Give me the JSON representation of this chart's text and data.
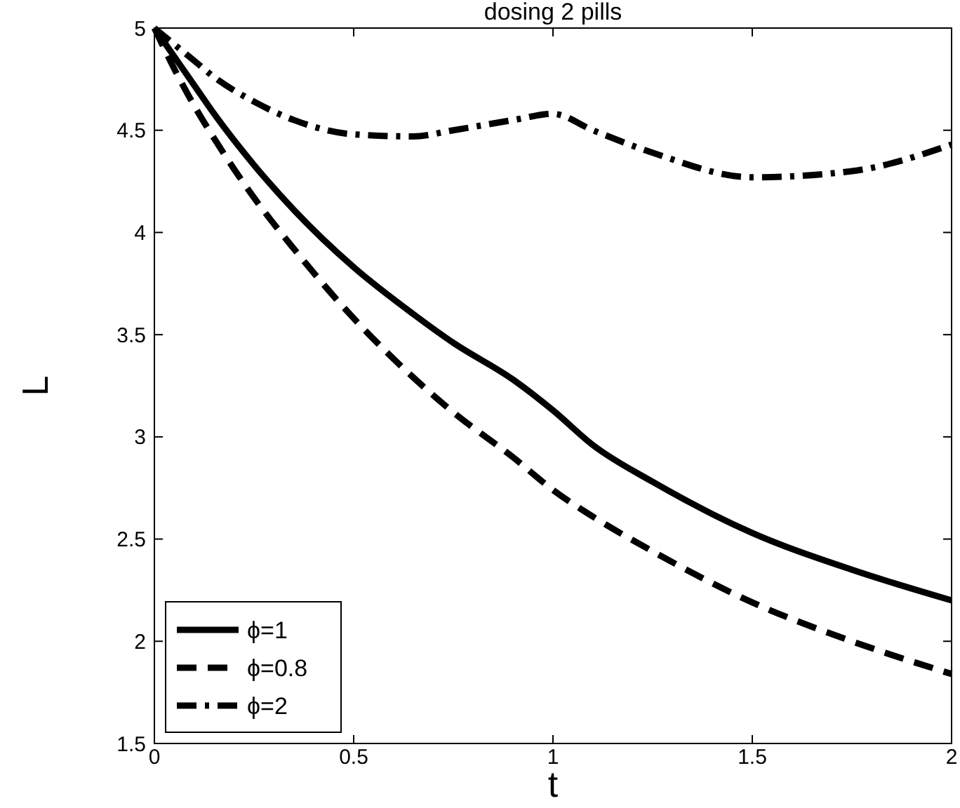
{
  "chart_data": {
    "type": "line",
    "title": "dosing 2 pills",
    "xlabel": "t",
    "ylabel": "L",
    "xlim": [
      0,
      2
    ],
    "ylim": [
      1.5,
      5
    ],
    "xticks": [
      0,
      0.5,
      1,
      1.5,
      2
    ],
    "yticks": [
      1.5,
      2,
      2.5,
      3,
      3.5,
      4,
      4.5,
      5
    ],
    "grid": false,
    "legend": "bottom left",
    "x": [
      0,
      0.05,
      0.1,
      0.15,
      0.25,
      0.35,
      0.5,
      0.65,
      0.75,
      0.9,
      1,
      1.1,
      1.25,
      1.5,
      1.75,
      2
    ],
    "series": [
      {
        "name": "ϕ=1",
        "color": "#000000",
        "line_style": "solid",
        "values": [
          5,
          4.86,
          4.72,
          4.58,
          4.33,
          4.11,
          3.83,
          3.6,
          3.46,
          3.28,
          3.13,
          2.96,
          2.78,
          2.53,
          2.35,
          2.2
        ]
      },
      {
        "name": "ϕ=0.8",
        "color": "#000000",
        "line_style": "dashed",
        "values": [
          5,
          4.8,
          4.62,
          4.46,
          4.17,
          3.92,
          3.58,
          3.29,
          3.12,
          2.9,
          2.74,
          2.61,
          2.44,
          2.19,
          2.0,
          1.84
        ]
      },
      {
        "name": "ϕ=2",
        "color": "#000000",
        "line_style": "dashdot",
        "values": [
          5,
          4.92,
          4.84,
          4.76,
          4.64,
          4.55,
          4.48,
          4.47,
          4.5,
          4.55,
          4.58,
          4.5,
          4.39,
          4.27,
          4.3,
          4.43
        ]
      }
    ]
  }
}
